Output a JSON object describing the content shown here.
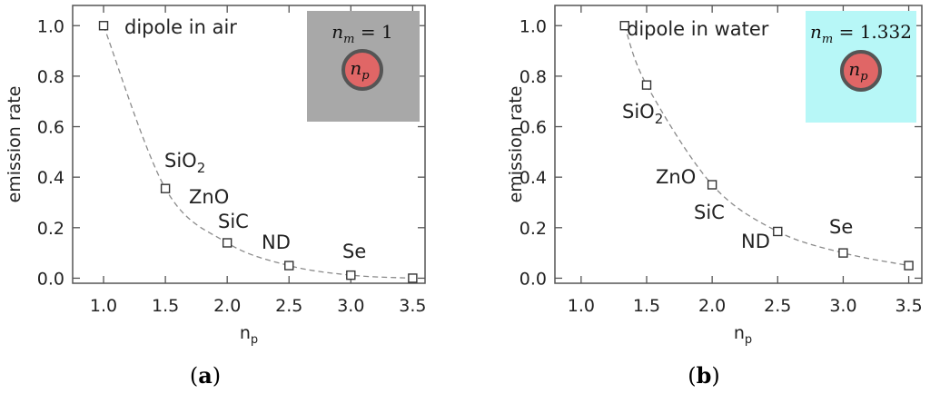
{
  "chart_data": [
    {
      "type": "scatter",
      "panel_label": "a",
      "xlabel": "n",
      "xlabel_sub": "p",
      "ylabel": "emission rate",
      "xlim": [
        0.75,
        3.6
      ],
      "ylim": [
        -0.02,
        1.08
      ],
      "xticks": [
        "1.0",
        "1.5",
        "2.0",
        "2.5",
        "3.0",
        "3.5"
      ],
      "yticks": [
        "0.0",
        "0.2",
        "0.4",
        "0.6",
        "0.8",
        "1.0"
      ],
      "grid": false,
      "x": [
        1.0,
        1.5,
        2.0,
        2.5,
        3.0,
        3.5
      ],
      "y": [
        1.0,
        0.355,
        0.14,
        0.05,
        0.012,
        0.0
      ],
      "point_labels": [
        {
          "text": "dipole in air",
          "x": 1.0,
          "y": 1.0
        },
        {
          "text": "SiO",
          "sub": "2",
          "x": 1.5,
          "y": 0.355
        },
        {
          "text": "ZnO",
          "x": 1.5,
          "y": 0.355
        },
        {
          "text": "SiC",
          "x": 2.0,
          "y": 0.14
        },
        {
          "text": "ND",
          "x": 2.5,
          "y": 0.05
        },
        {
          "text": "Se",
          "x": 3.0,
          "y": 0.012
        }
      ],
      "inset": {
        "background": "#a8a8a8",
        "text_var": "n",
        "text_sub": "m",
        "text_rest": " = 1",
        "particle_label": "n",
        "particle_sub": "p"
      }
    },
    {
      "type": "scatter",
      "panel_label": "b",
      "xlabel": "n",
      "xlabel_sub": "p",
      "ylabel": "emission rate",
      "xlim": [
        0.8,
        3.6
      ],
      "ylim": [
        -0.02,
        1.08
      ],
      "xticks": [
        "1.0",
        "1.5",
        "2.0",
        "2.5",
        "3.0",
        "3.5"
      ],
      "yticks": [
        "0.0",
        "0.2",
        "0.4",
        "0.6",
        "0.8",
        "1.0"
      ],
      "grid": false,
      "x": [
        1.332,
        1.5,
        2.0,
        2.5,
        3.0,
        3.5
      ],
      "y": [
        1.0,
        0.765,
        0.37,
        0.185,
        0.1,
        0.05
      ],
      "point_labels": [
        {
          "text": "dipole in water",
          "x": 1.332,
          "y": 1.0
        },
        {
          "text": "SiO",
          "sub": "2",
          "x": 1.5,
          "y": 0.765
        },
        {
          "text": "ZnO",
          "x": 2.0,
          "y": 0.37
        },
        {
          "text": "SiC",
          "x": 2.0,
          "y": 0.37
        },
        {
          "text": "ND",
          "x": 2.5,
          "y": 0.185
        },
        {
          "text": "Se",
          "x": 3.0,
          "y": 0.1
        }
      ],
      "inset": {
        "background": "#b7f7f7",
        "text_var": "n",
        "text_sub": "m",
        "text_rest": " = 1.332",
        "particle_label": "n",
        "particle_sub": "p"
      }
    }
  ],
  "colors": {
    "axis": "#555555",
    "markers": "#333333",
    "curve": "#8a8a8a",
    "particle_fill": "#e06666",
    "particle_stroke": "#555555"
  }
}
